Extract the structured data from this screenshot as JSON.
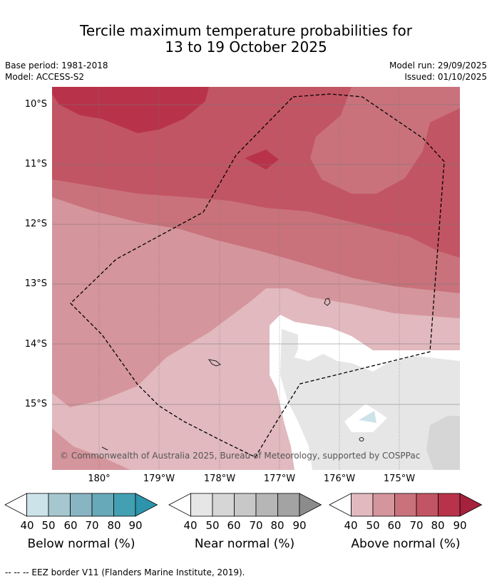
{
  "title": {
    "line1": "Tercile maximum temperature probabilities for",
    "line2": "13 to 19 October 2025"
  },
  "meta": {
    "base_period": "Base period: 1981-2018",
    "model": "Model: ACCESS-S2",
    "model_run": "Model run: 29/09/2025",
    "issued": "Issued: 01/10/2025"
  },
  "map": {
    "lat_labels": [
      "10°S",
      "11°S",
      "12°S",
      "13°S",
      "14°S",
      "15°S"
    ],
    "lon_labels": [
      "180°",
      "179°W",
      "178°W",
      "177°W",
      "176°W",
      "175°W"
    ],
    "copyright": "© Commonwealth of Australia 2025, Bureau of Meteorology, supported by COSPPac",
    "eez_border_style": "dashed"
  },
  "colorbars": [
    {
      "title": "Below normal (%)",
      "ticks": [
        "40",
        "50",
        "60",
        "70",
        "80",
        "90"
      ],
      "colors": [
        "#ffffff",
        "#cde3ea",
        "#a6c7cf",
        "#88b5c2",
        "#67a9b9",
        "#43a0b2",
        "#2d94ab"
      ]
    },
    {
      "title": "Near normal (%)",
      "ticks": [
        "40",
        "50",
        "60",
        "70",
        "80",
        "90"
      ],
      "colors": [
        "#ffffff",
        "#e6e6e6",
        "#d6d6d6",
        "#c8c8c8",
        "#b6b6b6",
        "#a3a3a3",
        "#8c8c8c"
      ]
    },
    {
      "title": "Above normal (%)",
      "ticks": [
        "40",
        "50",
        "60",
        "70",
        "80",
        "90"
      ],
      "colors": [
        "#ffffff",
        "#e1b9be",
        "#d5959c",
        "#c9727c",
        "#c25563",
        "#b8334a",
        "#a5213c"
      ]
    }
  ],
  "footnote": "--  --  -- EEZ border V11 (Flanders Marine Institute, 2019)."
}
